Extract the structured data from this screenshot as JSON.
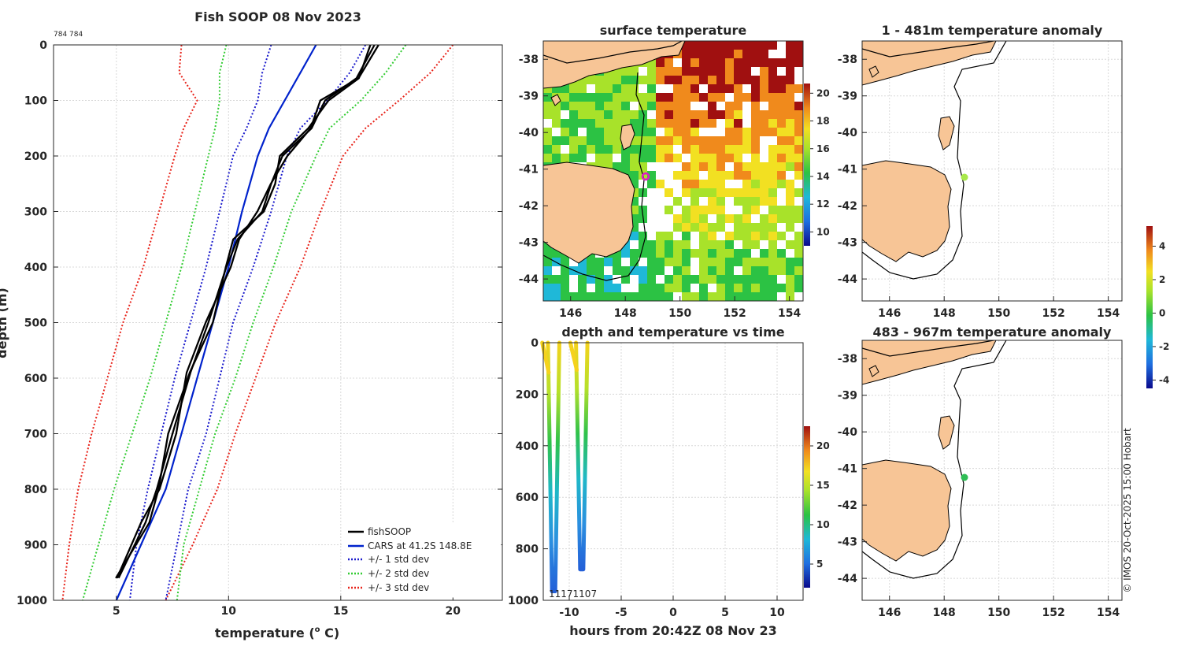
{
  "main_title": "Fish SOOP 08 Nov 2023",
  "small_label": "784 784",
  "credit": "© IMOS 20-Oct-2025 15:00 Hobart",
  "colors": {
    "fish": "#000000",
    "cars": "#0022cc",
    "std1": "#1a1acc",
    "std2": "#33cc33",
    "std3": "#e8231a"
  },
  "chart_data": [
    {
      "type": "line",
      "title": "",
      "xlabel": "temperature (",
      "xlabel_sup": "o",
      "xlabel_tail": " C)",
      "ylabel": "depth (m)",
      "xlim": [
        2.2,
        22.2
      ],
      "ylim": [
        0,
        1000
      ],
      "xticks": [
        5,
        10,
        15,
        20
      ],
      "yticks": [
        0,
        100,
        200,
        300,
        400,
        500,
        600,
        700,
        800,
        900,
        1000
      ],
      "depth": [
        0,
        50,
        100,
        150,
        200,
        300,
        400,
        500,
        600,
        700,
        800,
        900,
        1000
      ],
      "series": [
        {
          "name": "fishSOOP",
          "style": "solid",
          "color_key": "fish",
          "width": 2.5,
          "depth": [
            0,
            60,
            100,
            150,
            200,
            250,
            300,
            350,
            400,
            500,
            590,
            700,
            800,
            860,
            960
          ],
          "values": [
            16.5,
            15.7,
            14.3,
            13.7,
            12.4,
            11.9,
            11.5,
            10.4,
            9.9,
            9.1,
            8.3,
            7.5,
            6.8,
            6.3,
            5.1
          ]
        },
        {
          "name": "CARS at 41.2S 148.8E",
          "style": "solid",
          "color_key": "cars",
          "width": 2,
          "values": [
            13.9,
            13.2,
            12.5,
            11.8,
            11.3,
            10.6,
            10.0,
            9.3,
            8.6,
            7.9,
            7.2,
            6.1,
            5.0
          ]
        },
        {
          "name": "+/- 1 std dev",
          "style": "dotted",
          "color_key": "std1",
          "width": 2,
          "values_low": [
            11.9,
            11.5,
            11.3,
            10.8,
            10.2,
            9.6,
            9.0,
            8.3,
            7.6,
            7.0,
            6.4,
            5.9,
            5.6
          ],
          "values_high": [
            16.1,
            15.4,
            14.4,
            13.2,
            12.6,
            11.9,
            11.1,
            10.2,
            9.6,
            9.0,
            8.2,
            7.7,
            7.2
          ]
        },
        {
          "name": "+/- 2 std dev",
          "style": "dotted",
          "color_key": "std2",
          "width": 2,
          "values_low": [
            9.9,
            9.6,
            9.6,
            9.4,
            9.1,
            8.5,
            7.9,
            7.2,
            6.5,
            5.7,
            4.9,
            4.2,
            3.5
          ]
        },
        {
          "name": "+/- 3 std dev",
          "style": "dotted",
          "color_key": "std3",
          "width": 2,
          "values_low": [
            7.9,
            7.8,
            8.6,
            8.0,
            7.6,
            6.9,
            6.2,
            5.3,
            4.6,
            3.9,
            3.3,
            2.9,
            2.6
          ],
          "values_high": [
            20.0,
            19.0,
            17.6,
            16.1,
            15.1,
            14.1,
            13.2,
            12.1,
            11.2,
            10.3,
            9.5,
            8.4,
            7.2
          ]
        }
      ],
      "std2_high": [
        17.9,
        17.0,
        15.9,
        14.5,
        13.9,
        12.8,
        12.0,
        11.1,
        10.3,
        9.4,
        8.7,
        8.0,
        7.7
      ],
      "legend": {
        "position": "bottom-right",
        "entries": [
          "fishSOOP",
          "CARS at 41.2S 148.8E",
          "+/- 1 std dev",
          "+/- 2 std dev",
          "+/- 3 std dev"
        ]
      }
    },
    {
      "type": "heatmap",
      "title": "surface temperature",
      "xticks": [
        146,
        148,
        150,
        152,
        154
      ],
      "yticks": [
        -38,
        -39,
        -40,
        -41,
        -42,
        -43,
        -44
      ],
      "colorbar_ticks": [
        10,
        12,
        14,
        16,
        18,
        20
      ],
      "marker": {
        "lon": 148.8,
        "lat": -41.2
      }
    },
    {
      "type": "scatter",
      "title": "depth and temperature vs time",
      "xlabel": "hours from 20:42Z 08 Nov 23",
      "xlim": [
        -12.5,
        12.5
      ],
      "ylim": [
        0,
        1000
      ],
      "xticks": [
        -10,
        -5,
        0,
        5,
        10
      ],
      "yticks": [
        0,
        200,
        400,
        600,
        800,
        1000
      ],
      "colorbar_ticks": [
        5,
        10,
        15,
        20
      ],
      "annotation": "11171107",
      "profiles": [
        {
          "hours": -11.5,
          "max_depth": 965
        },
        {
          "hours": -8.8,
          "max_depth": 880
        }
      ]
    },
    {
      "type": "heatmap",
      "title": "1 - 481m temperature anomaly",
      "xticks": [
        146,
        148,
        150,
        152,
        154
      ],
      "yticks": [
        -38,
        -39,
        -40,
        -41,
        -42,
        -43,
        -44
      ],
      "marker": {
        "lon": 148.8,
        "lat": -41.2,
        "color": "#a8e84a"
      }
    },
    {
      "type": "heatmap",
      "title": "483 - 967m temperature anomaly",
      "xticks": [
        146,
        148,
        150,
        152,
        154
      ],
      "yticks": [
        -38,
        -39,
        -40,
        -41,
        -42,
        -43,
        -44
      ],
      "marker": {
        "lon": 148.8,
        "lat": -41.2,
        "color": "#2fbd55"
      }
    },
    {
      "type": "heatmap",
      "title": "",
      "colorbar_ticks": [
        4,
        2,
        0,
        -2,
        -4
      ]
    }
  ]
}
